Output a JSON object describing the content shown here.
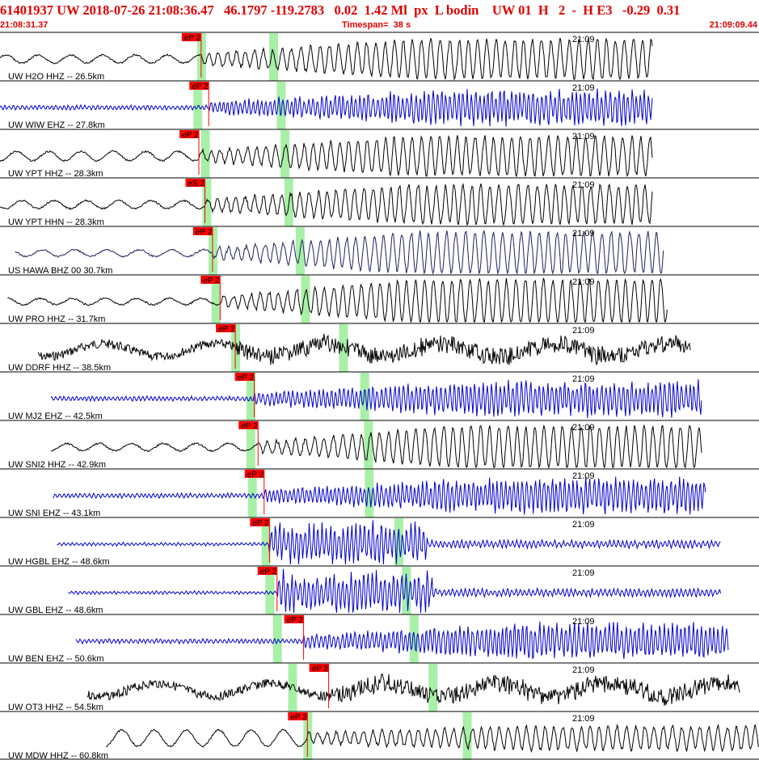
{
  "header": {
    "title": "61401937 UW 2018-07-26 21:08:36.47   46.1797 -119.2783   0.02  1.42 Ml  px  L bodin    UW 01  H   2  -  H E3   -0.29  0.31",
    "start_time": "21:08:31.37",
    "timespan": "Timespan=  38 s",
    "end_time": "21:09:09.44"
  },
  "colors": {
    "header_text": "#e00000",
    "pick_marker": "#ff0000",
    "green_band": "#a8f0a8",
    "trace_black": "#000000",
    "trace_blue": "#0000cc",
    "panel_border": "#000000"
  },
  "traces": [
    {
      "label": "UW H2O HHZ -- 26.5km",
      "time": "21:09",
      "pick": "eP 2",
      "color": "black",
      "kind": "lowfreq",
      "amp": 0.1,
      "growth": 0.55,
      "start": 0.0,
      "end": 0.86,
      "arrival": 0.265,
      "greenP": 0.265,
      "greenS": 0.36,
      "seed": 1
    },
    {
      "label": "UW WIW EHZ -- 27.8km",
      "time": "21:09",
      "pick": "eP 2",
      "color": "blue",
      "kind": "highfreq",
      "amp": 0.18,
      "growth": 0.55,
      "start": 0.0,
      "end": 0.86,
      "arrival": 0.275,
      "greenP": 0.26,
      "greenS": 0.37,
      "seed": 2
    },
    {
      "label": "UW YPT HHZ -- 28.3km",
      "time": "21:09",
      "pick": "eP 2",
      "color": "black",
      "kind": "lowfreq",
      "amp": 0.14,
      "growth": 0.55,
      "start": 0.0,
      "end": 0.86,
      "arrival": 0.262,
      "greenP": 0.27,
      "greenS": 0.375,
      "seed": 3
    },
    {
      "label": "UW YPT HHN -- 28.3km",
      "time": "21:09",
      "pick": "eS 2",
      "color": "black",
      "kind": "lowfreq",
      "amp": 0.1,
      "growth": 0.55,
      "start": 0.0,
      "end": 0.86,
      "arrival": 0.27,
      "greenP": 0.272,
      "greenS": 0.38,
      "seed": 4
    },
    {
      "label": "US HAWA BHZ 00 30.7km",
      "time": "21:09",
      "pick": "eP 2",
      "color": "navy",
      "kind": "lowfreq",
      "amp": 0.06,
      "growth": 0.6,
      "start": 0.02,
      "end": 0.875,
      "arrival": 0.28,
      "greenP": 0.28,
      "greenS": 0.395,
      "seed": 5
    },
    {
      "label": "UW PRO HHZ -- 31.7km",
      "time": "21:09",
      "pick": "eP 2",
      "color": "black",
      "kind": "lowfreq",
      "amp": 0.05,
      "growth": 0.65,
      "start": 0.01,
      "end": 0.88,
      "arrival": 0.29,
      "greenP": 0.284,
      "greenS": 0.402,
      "seed": 6
    },
    {
      "label": "UW DDRF HHZ -- 38.5km",
      "time": "21:09",
      "pick": "eP 2",
      "color": "black",
      "kind": "noisy",
      "amp": 0.3,
      "growth": 0.35,
      "start": 0.05,
      "end": 0.91,
      "arrival": 0.31,
      "greenP": 0.31,
      "greenS": 0.452,
      "seed": 7
    },
    {
      "label": "UW MJ2 EHZ -- 42.5km",
      "time": "21:09",
      "pick": "eP 2",
      "color": "blue",
      "kind": "highfreq",
      "amp": 0.1,
      "growth": 0.55,
      "start": 0.067,
      "end": 0.925,
      "arrival": 0.335,
      "greenP": 0.33,
      "greenS": 0.48,
      "seed": 8
    },
    {
      "label": "UW SNI2 HHZ -- 42.9km",
      "time": "21:09",
      "pick": "eP 2",
      "color": "black",
      "kind": "lowfreq",
      "amp": 0.08,
      "growth": 0.6,
      "start": 0.067,
      "end": 0.925,
      "arrival": 0.34,
      "greenP": 0.33,
      "greenS": 0.485,
      "seed": 9
    },
    {
      "label": "UW SNI EHZ -- 43.1km",
      "time": "21:09",
      "pick": "eP 2",
      "color": "blue",
      "kind": "highfreq",
      "amp": 0.06,
      "growth": 0.6,
      "start": 0.07,
      "end": 0.93,
      "arrival": 0.348,
      "greenP": 0.332,
      "greenS": 0.486,
      "seed": 10
    },
    {
      "label": "UW HGBL EHZ -- 48.6km",
      "time": "21:09",
      "pick": "eP 2",
      "color": "blue",
      "kind": "burst",
      "amp": 0.05,
      "growth": 0.9,
      "start": 0.075,
      "end": 0.95,
      "arrival": 0.355,
      "greenP": 0.35,
      "greenS": 0.525,
      "seed": 11
    },
    {
      "label": "UW GBL EHZ -- 48.6km",
      "time": "21:09",
      "pick": "eP 2",
      "color": "blue",
      "kind": "burst",
      "amp": 0.05,
      "growth": 0.95,
      "start": 0.09,
      "end": 0.95,
      "arrival": 0.365,
      "greenP": 0.355,
      "greenS": 0.535,
      "seed": 12
    },
    {
      "label": "UW BEN EHZ -- 50.6km",
      "time": "21:09",
      "pick": "eP 2",
      "color": "blue",
      "kind": "highfreq",
      "amp": 0.06,
      "growth": 0.6,
      "start": 0.1,
      "end": 0.96,
      "arrival": 0.4,
      "greenP": 0.365,
      "greenS": 0.545,
      "seed": 13
    },
    {
      "label": "UW OT3 HHZ -- 54.5km",
      "time": "21:09",
      "pick": "eP 2",
      "color": "black",
      "kind": "noisy",
      "amp": 0.15,
      "growth": 0.45,
      "start": 0.115,
      "end": 0.975,
      "arrival": 0.433,
      "greenP": 0.385,
      "greenS": 0.57,
      "seed": 14
    },
    {
      "label": "UW MDW HHZ -- 60.8km",
      "time": "21:09",
      "pick": "eP 2",
      "color": "black",
      "kind": "lowfreq",
      "amp": 0.35,
      "growth": 0.25,
      "start": 0.14,
      "end": 1.0,
      "arrival": 0.405,
      "greenP": 0.405,
      "greenS": 0.615,
      "seed": 15
    }
  ]
}
